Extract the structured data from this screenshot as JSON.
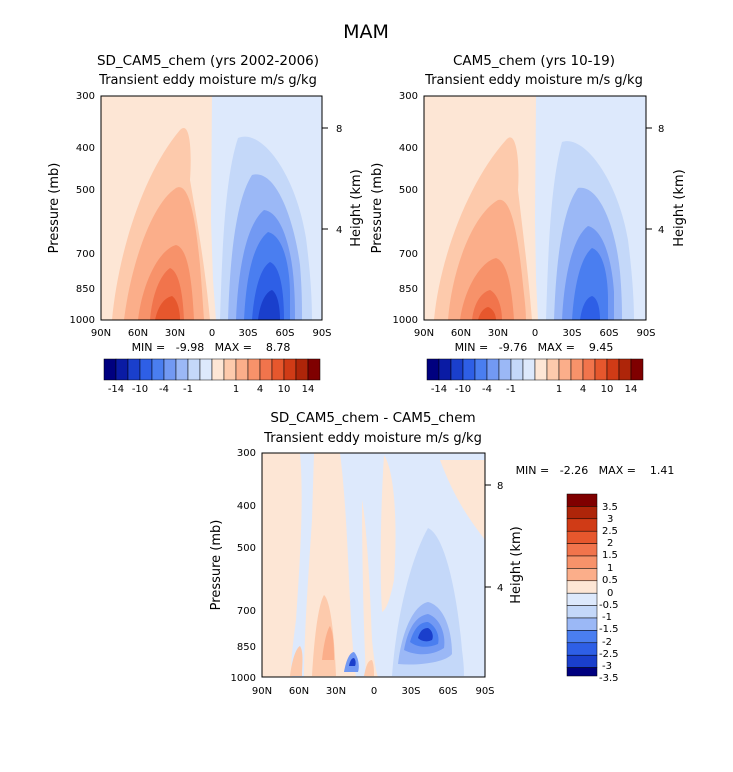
{
  "figure_title": "MAM",
  "chart_data": [
    {
      "type": "heatmap",
      "title": "SD_CAM5_chem (yrs 2002-2006)",
      "subtitle": "Transient eddy moisture m/s g/kg",
      "ylabel": "Pressure (mb)",
      "y2label": "Height (km)",
      "xticks": [
        "90N",
        "60N",
        "30N",
        "0",
        "30S",
        "60S",
        "90S"
      ],
      "yticks": [
        "300",
        "400",
        "500",
        "700",
        "850",
        "1000"
      ],
      "ytick_values": [
        300,
        400,
        500,
        700,
        850,
        1000
      ],
      "y2ticks": [
        "8",
        "4"
      ],
      "xlim": [
        90,
        -90
      ],
      "ylim": [
        1000,
        300
      ],
      "stats": "MIN =   -9.98   MAX =    8.78",
      "min": -9.98,
      "max": 8.78,
      "colorbar_labels": [
        "-14",
        "-10",
        "-4",
        "-1",
        "1",
        "4",
        "10",
        "14"
      ]
    },
    {
      "type": "heatmap",
      "title": "CAM5_chem (yrs 10-19)",
      "subtitle": "Transient eddy moisture m/s g/kg",
      "ylabel": "Pressure (mb)",
      "y2label": "Height (km)",
      "xticks": [
        "90N",
        "60N",
        "30N",
        "0",
        "30S",
        "60S",
        "90S"
      ],
      "yticks": [
        "300",
        "400",
        "500",
        "700",
        "850",
        "1000"
      ],
      "ytick_values": [
        300,
        400,
        500,
        700,
        850,
        1000
      ],
      "y2ticks": [
        "8",
        "4"
      ],
      "xlim": [
        90,
        -90
      ],
      "ylim": [
        1000,
        300
      ],
      "stats": "MIN =   -9.76   MAX =    9.45",
      "min": -9.76,
      "max": 9.45,
      "colorbar_labels": [
        "-14",
        "-10",
        "-4",
        "-1",
        "1",
        "4",
        "10",
        "14"
      ]
    },
    {
      "type": "heatmap",
      "title": "SD_CAM5_chem - CAM5_chem",
      "subtitle": "Transient eddy moisture m/s g/kg",
      "ylabel": "Pressure (mb)",
      "y2label": "Height (km)",
      "xticks": [
        "90N",
        "60N",
        "30N",
        "0",
        "30S",
        "60S",
        "90S"
      ],
      "yticks": [
        "300",
        "400",
        "500",
        "700",
        "850",
        "1000"
      ],
      "ytick_values": [
        300,
        400,
        500,
        700,
        850,
        1000
      ],
      "y2ticks": [
        "8",
        "4"
      ],
      "xlim": [
        90,
        -90
      ],
      "ylim": [
        1000,
        300
      ],
      "stats": "MIN =   -2.26   MAX =    1.41",
      "min": -2.26,
      "max": 1.41,
      "colorbar_labels": [
        "3.5",
        "3",
        "2.5",
        "2",
        "1.5",
        "1",
        "0.5",
        "0",
        "-0.5",
        "-1",
        "-1.5",
        "-2",
        "-2.5",
        "-3",
        "-3.5"
      ]
    }
  ],
  "palette": {
    "blue": [
      "#00007f",
      "#0a1ba4",
      "#1a3fcc",
      "#2e5fe6",
      "#4a7ef0",
      "#7299f3",
      "#9bb8f6",
      "#c4d8f9",
      "#dde9fc"
    ],
    "red": [
      "#fde6d5",
      "#fdcaac",
      "#fbae8a",
      "#f7926a",
      "#f1744c",
      "#e6572d",
      "#d03b16",
      "#ae2509",
      "#7f0000"
    ],
    "bg_warm": "#fde6d5",
    "bg_cool": "#dde9fc"
  }
}
